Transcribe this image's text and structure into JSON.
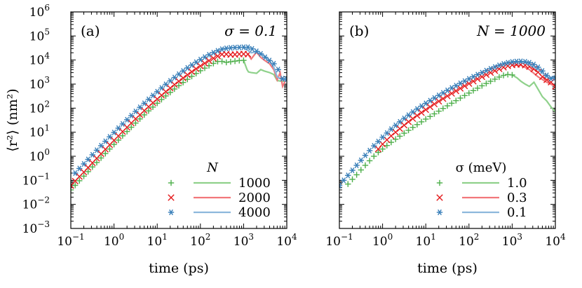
{
  "colors": {
    "green": "#4daf4a",
    "red": "#e41a1c",
    "blue": "#377eb8",
    "green_line": "#8fd18b",
    "red_line": "#f2777a",
    "blue_line": "#8db8dc"
  },
  "chart_data": [
    {
      "type": "scatter",
      "panel_label": "(a)",
      "annotation": "σ = 0.1",
      "xlabel": "time (ps)",
      "ylabel": "⟨r²⟩ (nm²)",
      "xscale": "log",
      "yscale": "log",
      "xlim": [
        0.1,
        10000
      ],
      "ylim": [
        0.001,
        1000000
      ],
      "x_ticks": [
        "10",
        "10",
        "10",
        "10",
        "10",
        "10"
      ],
      "x_tick_exps": [
        "−1",
        "0",
        "1",
        "2",
        "3",
        "4"
      ],
      "y_ticks": [
        "10",
        "10",
        "10",
        "10",
        "10",
        "10",
        "10",
        "10",
        "10",
        "10"
      ],
      "y_tick_exps": [
        "−3",
        "−2",
        "−1",
        "0",
        "1",
        "2",
        "3",
        "4",
        "5",
        "6"
      ],
      "legend_title": "N",
      "legend_position": "lower-right",
      "series": [
        {
          "name": "1000",
          "color_key": "green",
          "marker": "plus",
          "marker_x": [
            0.1,
            0.126,
            0.158,
            0.2,
            0.251,
            0.316,
            0.398,
            0.501,
            0.631,
            0.794,
            1,
            1.26,
            1.58,
            2,
            2.51,
            3.16,
            3.98,
            5.01,
            6.31,
            7.94,
            10,
            12.6,
            15.8,
            20,
            25.1,
            31.6,
            39.8,
            50.1,
            63.1,
            79.4,
            100,
            126,
            158,
            200,
            251,
            316,
            398,
            501,
            631,
            794,
            1000
          ],
          "marker_y": [
            0.04,
            0.062,
            0.096,
            0.149,
            0.23,
            0.36,
            0.55,
            0.85,
            1.3,
            2,
            3.1,
            4.7,
            7.1,
            10.7,
            16.1,
            24,
            35.7,
            52.6,
            77,
            111,
            160,
            228,
            322,
            451,
            626,
            861,
            1170,
            1580,
            2100,
            2770,
            3600,
            4620,
            5840,
            7230,
            8690,
            8800,
            8000,
            8500,
            9000,
            9500,
            9700
          ],
          "line_x": [
            1000,
            1200,
            1300,
            1500,
            2000,
            2500,
            3000,
            4000,
            5000,
            6000,
            8000,
            10000
          ],
          "line_y": [
            9700,
            4000,
            3200,
            3000,
            2800,
            4000,
            3500,
            3000,
            2500,
            1400,
            1300,
            1400
          ]
        },
        {
          "name": "2000",
          "color_key": "red",
          "marker": "cross",
          "marker_x": [
            0.1,
            0.126,
            0.158,
            0.2,
            0.251,
            0.316,
            0.398,
            0.501,
            0.631,
            0.794,
            1,
            1.26,
            1.58,
            2,
            2.51,
            3.16,
            3.98,
            5.01,
            6.31,
            7.94,
            10,
            12.6,
            15.8,
            20,
            25.1,
            31.6,
            39.8,
            50.1,
            63.1,
            79.4,
            100,
            126,
            158,
            200,
            251,
            316,
            398,
            501,
            631,
            794,
            1000,
            1260
          ],
          "marker_y": [
            0.06,
            0.093,
            0.144,
            0.22,
            0.34,
            0.53,
            0.82,
            1.27,
            1.95,
            3,
            4.6,
            7,
            10.6,
            16,
            24,
            36,
            53,
            79,
            115,
            167,
            240,
            343,
            486,
            680,
            950,
            1310,
            1790,
            2420,
            3250,
            4310,
            5650,
            7330,
            9380,
            11800,
            14500,
            17200,
            17500,
            16800,
            17000,
            17600,
            17800,
            17500
          ],
          "line_x": [
            1260,
            1500,
            1800,
            2000,
            2500,
            3000,
            4000,
            5000,
            6000,
            7000,
            8000,
            10000
          ],
          "line_y": [
            17500,
            11000,
            17000,
            21000,
            13000,
            10000,
            7000,
            4000,
            1500,
            3000,
            800,
            1800
          ]
        },
        {
          "name": "4000",
          "color_key": "blue",
          "marker": "asterisk",
          "marker_x": [
            0.126,
            0.158,
            0.2,
            0.251,
            0.316,
            0.398,
            0.501,
            0.631,
            0.794,
            1,
            1.26,
            1.58,
            2,
            2.51,
            3.16,
            3.98,
            5.01,
            6.31,
            7.94,
            10,
            12.6,
            15.8,
            20,
            25.1,
            31.6,
            39.8,
            50.1,
            63.1,
            79.4,
            100,
            126,
            158,
            200,
            251,
            316,
            398,
            501,
            631,
            794,
            1000,
            1260,
            1580,
            2000,
            2510,
            3160,
            3980,
            5010,
            6310,
            7940,
            10000
          ],
          "marker_y": [
            0.2,
            0.31,
            0.48,
            0.74,
            1.15,
            1.78,
            2.75,
            4.2,
            6.4,
            9.7,
            14.7,
            22,
            33,
            49,
            73,
            108,
            159,
            232,
            336,
            483,
            690,
            975,
            1360,
            1880,
            2580,
            3500,
            4700,
            6200,
            8100,
            10400,
            13200,
            16500,
            20200,
            24200,
            28200,
            30500,
            32000,
            33000,
            33500,
            34000,
            34000,
            29000,
            23000,
            18000,
            13000,
            9500,
            7000,
            4000,
            1700,
            1600
          ],
          "line_x": [
            1000,
            1500,
            2000,
            3000,
            4000,
            5000,
            6000,
            8000,
            10000
          ],
          "line_y": [
            34000,
            20000,
            22000,
            15000,
            9000,
            5000,
            2000,
            1500,
            1500
          ]
        }
      ]
    },
    {
      "type": "scatter",
      "panel_label": "(b)",
      "annotation": "N = 1000",
      "xlabel": "time (ps)",
      "xscale": "log",
      "yscale": "log",
      "xlim": [
        0.1,
        10000
      ],
      "ylim": [
        0.001,
        1000000
      ],
      "x_ticks": [
        "10",
        "10",
        "10",
        "10",
        "10",
        "10"
      ],
      "x_tick_exps": [
        "−1",
        "0",
        "1",
        "2",
        "3",
        "4"
      ],
      "legend_title": "σ (meV)",
      "legend_position": "lower-right",
      "series": [
        {
          "name": "1.0",
          "color_key": "green",
          "marker": "plus",
          "marker_x": [
            0.158,
            0.2,
            0.251,
            0.316,
            0.398,
            0.501,
            0.631,
            0.794,
            1,
            1.26,
            1.58,
            2,
            2.51,
            3.16,
            3.98,
            5.01,
            6.31,
            7.94,
            10,
            12.6,
            15.8,
            20,
            25.1,
            31.6,
            39.8,
            50.1,
            63.1,
            79.4,
            100,
            126,
            158,
            200,
            251,
            316,
            398,
            501,
            631,
            794,
            1000
          ],
          "marker_y": [
            0.07,
            0.11,
            0.17,
            0.27,
            0.42,
            0.65,
            1,
            1.45,
            2,
            2.8,
            3.8,
            5.1,
            6.8,
            9.1,
            12,
            15.8,
            20.7,
            27,
            35,
            45,
            58,
            75,
            97,
            125,
            160,
            205,
            262,
            334,
            424,
            537,
            677,
            849,
            1060,
            1310,
            1600,
            1960,
            2300,
            2500,
            2400
          ],
          "line_x": [
            1000,
            1300,
            1600,
            2000,
            2500,
            3200,
            4000,
            5000,
            6300,
            8000,
            10000
          ],
          "line_y": [
            2400,
            1800,
            1300,
            1000,
            800,
            1200,
            600,
            300,
            200,
            110,
            70
          ]
        },
        {
          "name": "0.3",
          "color_key": "red",
          "marker": "cross",
          "marker_x": [
            0.794,
            1,
            1.26,
            1.58,
            2,
            2.51,
            3.16,
            3.98,
            5.01,
            6.31,
            7.94,
            10,
            12.6,
            15.8,
            20,
            25.1,
            31.6,
            39.8,
            50.1,
            63.1,
            79.4,
            100,
            126,
            158,
            200,
            251,
            316,
            398,
            501,
            631,
            794,
            1000,
            1260,
            1580,
            2000,
            2510,
            3160,
            3980,
            5010,
            6310,
            7940,
            10000
          ],
          "marker_y": [
            2,
            3.2,
            4.8,
            7,
            10,
            14,
            19.5,
            27,
            36.5,
            49,
            65,
            86,
            113,
            148,
            192,
            248,
            319,
            408,
            520,
            660,
            833,
            1050,
            1310,
            1630,
            2010,
            2460,
            2990,
            3600,
            4280,
            5000,
            5700,
            6200,
            6500,
            6500,
            6100,
            5300,
            4200,
            3100,
            2000,
            1500,
            1200,
            800
          ],
          "line_x": [
            1000,
            1600,
            2500,
            4000,
            6300,
            10000
          ],
          "line_y": [
            6200,
            6000,
            4000,
            2000,
            1200,
            800
          ]
        },
        {
          "name": "0.1",
          "color_key": "blue",
          "marker": "asterisk",
          "marker_x": [
            0.1,
            0.126,
            0.158,
            0.2,
            0.251,
            0.316,
            0.398,
            0.501,
            0.631,
            0.794,
            1,
            1.26,
            1.58,
            2,
            2.51,
            3.16,
            3.98,
            5.01,
            6.31,
            7.94,
            10,
            12.6,
            15.8,
            20,
            25.1,
            31.6,
            39.8,
            50.1,
            63.1,
            79.4,
            100,
            126,
            158,
            200,
            251,
            316,
            398,
            501,
            631,
            794,
            1000,
            1260,
            1580,
            2000,
            2510,
            3160,
            3980,
            5010,
            6310,
            7940,
            10000
          ],
          "marker_y": [
            0.06,
            0.1,
            0.16,
            0.26,
            0.42,
            0.68,
            1.09,
            1.72,
            2.7,
            4.1,
            6.2,
            9.2,
            13.4,
            19.2,
            27,
            37.4,
            51,
            69,
            92,
            121,
            158,
            205,
            264,
            338,
            431,
            546,
            688,
            862,
            1075,
            1333,
            1645,
            2020,
            2470,
            3000,
            3620,
            4330,
            5130,
            6000,
            6900,
            7700,
            8300,
            8700,
            8800,
            8500,
            7700,
            6500,
            5000,
            3500,
            2300,
            1700,
            1800
          ],
          "line_x": [
            1000,
            2000,
            4000,
            6300,
            10000
          ],
          "line_y": [
            8300,
            8000,
            4000,
            2000,
            1800
          ]
        }
      ]
    }
  ]
}
